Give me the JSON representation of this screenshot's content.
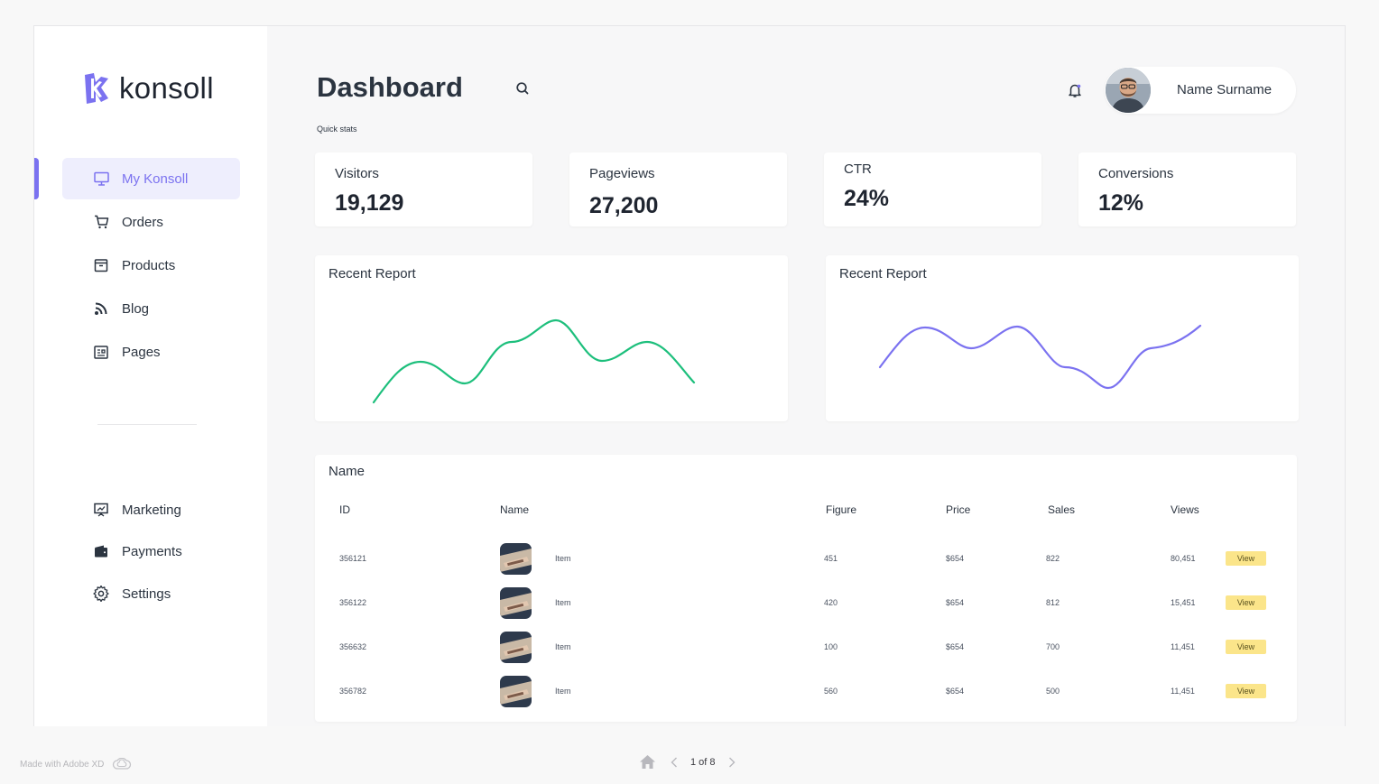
{
  "brand": {
    "name": "konsoll",
    "accent": "#7b72f0"
  },
  "sidebar": {
    "items": [
      {
        "label": "My Konsoll",
        "icon": "monitor-icon",
        "active": true
      },
      {
        "label": "Orders",
        "icon": "cart-icon"
      },
      {
        "label": "Products",
        "icon": "box-icon"
      },
      {
        "label": "Blog",
        "icon": "rss-icon"
      },
      {
        "label": "Pages",
        "icon": "pages-icon"
      }
    ],
    "bottom_items": [
      {
        "label": "Marketing",
        "icon": "presentation-icon"
      },
      {
        "label": "Payments",
        "icon": "wallet-icon"
      },
      {
        "label": "Settings",
        "icon": "gear-icon"
      }
    ]
  },
  "header": {
    "title": "Dashboard",
    "quick_stats_label": "Quick stats",
    "user_name": "Name Surname"
  },
  "stats": [
    {
      "label": "Visitors",
      "value": "19,129"
    },
    {
      "label": "Pageviews",
      "value": "27,200"
    },
    {
      "label": "CTR",
      "value": "24%"
    },
    {
      "label": "Conversions",
      "value": "12%"
    }
  ],
  "reports": [
    {
      "title": "Recent Report",
      "color": "#1dbf7c"
    },
    {
      "title": "Recent Report",
      "color": "#7b72f0"
    }
  ],
  "table": {
    "title": "Name",
    "columns": [
      "ID",
      "Name",
      "Figure",
      "Price",
      "Sales",
      "Views"
    ],
    "rows": [
      {
        "id": "356121",
        "name": "Item",
        "figure": "451",
        "price": "$654",
        "sales": "822",
        "views": "80,451",
        "action": "View"
      },
      {
        "id": "356122",
        "name": "Item",
        "figure": "420",
        "price": "$654",
        "sales": "812",
        "views": "15,451",
        "action": "View"
      },
      {
        "id": "356632",
        "name": "Item",
        "figure": "100",
        "price": "$654",
        "sales": "700",
        "views": "11,451",
        "action": "View"
      },
      {
        "id": "356782",
        "name": "Item",
        "figure": "560",
        "price": "$654",
        "sales": "500",
        "views": "11,451",
        "action": "View"
      }
    ]
  },
  "footer": {
    "made_with": "Made with Adobe XD",
    "pager": "1 of 8"
  }
}
